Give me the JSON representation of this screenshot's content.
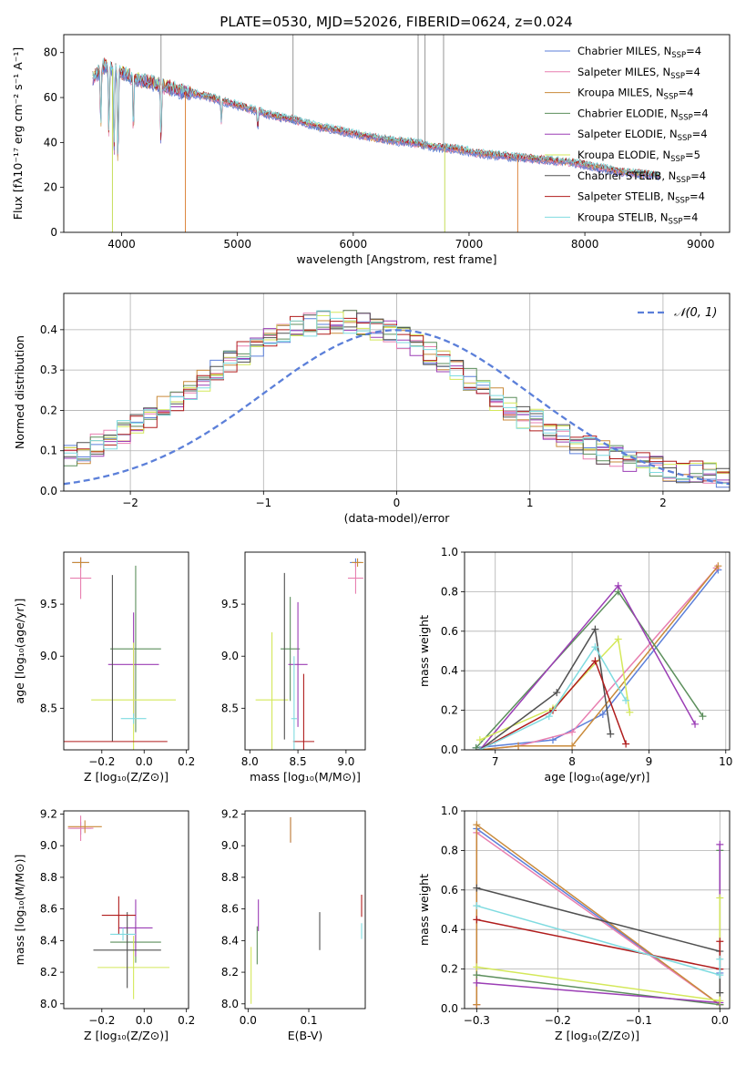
{
  "figure_title": "PLATE=0530, MJD=52026, FIBERID=0624, z=0.024",
  "models": [
    {
      "label": "Chabrier MILES, N",
      "sub": "SSP",
      "tail": "=4",
      "color": "#5b7fd9"
    },
    {
      "label": "Salpeter MILES, N",
      "sub": "SSP",
      "tail": "=4",
      "color": "#e87fb0"
    },
    {
      "label": "Kroupa MILES, N",
      "sub": "SSP",
      "tail": "=4",
      "color": "#c98a3a"
    },
    {
      "label": "Chabrier ELODIE, N",
      "sub": "SSP",
      "tail": "=4",
      "color": "#5c8f5c"
    },
    {
      "label": "Salpeter ELODIE, N",
      "sub": "SSP",
      "tail": "=4",
      "color": "#9b3db5"
    },
    {
      "label": "Kroupa ELODIE, N",
      "sub": "SSP",
      "tail": "=5",
      "color": "#d4e85a"
    },
    {
      "label": "Chabrier STELIB, N",
      "sub": "SSP",
      "tail": "=4",
      "color": "#505050"
    },
    {
      "label": "Salpeter STELIB, N",
      "sub": "SSP",
      "tail": "=4",
      "color": "#b01c1c"
    },
    {
      "label": "Kroupa STELIB, N",
      "sub": "SSP",
      "tail": "=4",
      "color": "#7fdbe0"
    }
  ],
  "chart_data": [
    {
      "id": "spectrum",
      "type": "line",
      "xlabel": "wavelength [Angstrom, rest frame]",
      "ylabel": "Flux [fλ10⁻¹⁷ erg cm⁻² s⁻¹ A⁻¹]",
      "xlim": [
        3500,
        9250
      ],
      "ylim": [
        0,
        88
      ],
      "xticks": [
        4000,
        5000,
        6000,
        7000,
        8000,
        9000
      ],
      "yticks": [
        0,
        20,
        40,
        60,
        80
      ],
      "grid": false,
      "legend": "top-right",
      "continuum": {
        "x": [
          3750,
          3850,
          3950,
          4050,
          4150,
          4300,
          4500,
          4700,
          4900,
          5100,
          5300,
          5500,
          5700,
          5900,
          6100,
          6300,
          6500,
          6700,
          6900,
          7100,
          7300,
          7500,
          7700,
          7900,
          8100,
          8300,
          8500,
          8650
        ],
        "y": [
          68,
          74,
          72,
          70,
          68,
          66,
          63,
          61,
          58,
          55,
          52,
          50,
          47,
          45,
          43,
          41,
          40,
          38,
          37,
          35,
          34,
          33,
          32,
          31,
          29,
          27,
          26,
          25
        ]
      },
      "absorption_lines": [
        {
          "x": 3820,
          "depth": 25
        },
        {
          "x": 3890,
          "depth": 30
        },
        {
          "x": 3934,
          "depth": 40
        },
        {
          "x": 3968,
          "depth": 42
        },
        {
          "x": 4101,
          "depth": 25
        },
        {
          "x": 4340,
          "depth": 25
        },
        {
          "x": 4861,
          "depth": 10
        },
        {
          "x": 5175,
          "depth": 8
        }
      ],
      "artifacts": [
        {
          "x": 3920,
          "y": 0
        },
        {
          "x": 4550,
          "y": 0
        },
        {
          "x": 6790,
          "y": 0
        },
        {
          "x": 7420,
          "y": 0
        },
        {
          "x": 4340,
          "y": 88
        },
        {
          "x": 5480,
          "y": 88
        },
        {
          "x": 6560,
          "y": 88
        },
        {
          "x": 6620,
          "y": 88
        },
        {
          "x": 6780,
          "y": 88
        }
      ]
    },
    {
      "id": "residuals",
      "type": "histogram",
      "xlabel": "(data-model)/error",
      "ylabel": "Normed distribution",
      "xlim": [
        -2.5,
        2.5
      ],
      "ylim": [
        0,
        0.49
      ],
      "xticks": [
        -2,
        -1,
        0,
        1,
        2
      ],
      "yticks": [
        0.0,
        0.1,
        0.2,
        0.3,
        0.4
      ],
      "grid": true,
      "legend": "top-right",
      "gaussian_label": "𝒩(0, 1)",
      "gaussian_color": "#5b7fd9",
      "bin_edges_start": -2.5,
      "bin_width": 0.1
    },
    {
      "id": "age_vs_Z",
      "type": "errorbar",
      "xlabel": "Z [log₁₀(Z/Z⊙)]",
      "ylabel": "age  [log₁₀(age/yr)]",
      "xlim": [
        -0.38,
        0.21
      ],
      "ylim": [
        8.1,
        10.0
      ],
      "xticks": [
        -0.2,
        0.0,
        0.2
      ],
      "yticks": [
        8.5,
        9.0,
        9.5
      ],
      "grid": false
    },
    {
      "id": "age_vs_mass",
      "type": "errorbar",
      "xlabel": "mass [log₁₀(M/M⊙)]",
      "ylabel": "",
      "xlim": [
        7.95,
        9.2
      ],
      "ylim": [
        8.1,
        10.0
      ],
      "xticks": [
        8.0,
        8.5,
        9.0
      ],
      "yticks": [
        8.5,
        9.0,
        9.5
      ],
      "grid": false
    },
    {
      "id": "weight_vs_age",
      "type": "line",
      "xlabel": "age  [log₁₀(age/yr)]",
      "ylabel": "mass weight",
      "xlim": [
        6.6,
        10.05
      ],
      "ylim": [
        0.0,
        1.0
      ],
      "xticks": [
        7,
        8,
        9,
        10
      ],
      "yticks": [
        0.0,
        0.2,
        0.4,
        0.6,
        0.8,
        1.0
      ],
      "grid": true,
      "series": [
        {
          "model": 0,
          "x": [
            6.75,
            7.75,
            8.4,
            9.9
          ],
          "y": [
            0.01,
            0.05,
            0.18,
            0.91
          ]
        },
        {
          "model": 1,
          "x": [
            6.8,
            7.3,
            8.0,
            9.88
          ],
          "y": [
            0.0,
            0.02,
            0.09,
            0.92
          ]
        },
        {
          "model": 2,
          "x": [
            6.8,
            7.3,
            8.0,
            9.9
          ],
          "y": [
            0.0,
            0.02,
            0.02,
            0.93
          ]
        },
        {
          "model": 3,
          "x": [
            6.75,
            8.6,
            9.7
          ],
          "y": [
            0.01,
            0.8,
            0.17
          ]
        },
        {
          "model": 4,
          "x": [
            6.8,
            8.6,
            9.6
          ],
          "y": [
            0.0,
            0.83,
            0.13
          ]
        },
        {
          "model": 5,
          "x": [
            6.8,
            7.75,
            8.6,
            8.75
          ],
          "y": [
            0.05,
            0.21,
            0.56,
            0.19
          ]
        },
        {
          "model": 6,
          "x": [
            6.8,
            7.8,
            8.3,
            8.5
          ],
          "y": [
            0.0,
            0.29,
            0.61,
            0.08
          ]
        },
        {
          "model": 7,
          "x": [
            6.8,
            7.75,
            8.3,
            8.7
          ],
          "y": [
            0.0,
            0.2,
            0.45,
            0.03
          ]
        },
        {
          "model": 8,
          "x": [
            6.8,
            7.7,
            8.3,
            8.7
          ],
          "y": [
            0.0,
            0.17,
            0.52,
            0.25
          ]
        }
      ]
    },
    {
      "id": "mass_vs_Z",
      "type": "errorbar",
      "xlabel": "Z [log₁₀(Z/Z⊙)]",
      "ylabel": "mass [log₁₀(M/M⊙)]",
      "xlim": [
        -0.38,
        0.21
      ],
      "ylim": [
        7.97,
        9.22
      ],
      "xticks": [
        -0.2,
        0.0,
        0.2
      ],
      "yticks": [
        8.0,
        8.2,
        8.4,
        8.6,
        8.8,
        9.0,
        9.2
      ],
      "grid": false
    },
    {
      "id": "mass_vs_ebv",
      "type": "errorbar",
      "xlabel": "E(B-V)",
      "ylabel": "",
      "xlim": [
        -0.005,
        0.193
      ],
      "ylim": [
        7.97,
        9.22
      ],
      "xticks": [
        0.0,
        0.1
      ],
      "yticks": [
        8.0,
        8.2,
        8.4,
        8.6,
        8.8,
        9.0,
        9.2
      ],
      "grid": false,
      "points": [
        {
          "model": 0,
          "x": 0.07,
          "y": 9.1,
          "err": 0.08
        },
        {
          "model": 1,
          "x": 0.07,
          "y": 9.1,
          "err": 0.08
        },
        {
          "model": 2,
          "x": 0.07,
          "y": 9.1,
          "err": 0.08
        },
        {
          "model": 3,
          "x": 0.015,
          "y": 8.37,
          "err": 0.12
        },
        {
          "model": 4,
          "x": 0.017,
          "y": 8.56,
          "err": 0.1
        },
        {
          "model": 5,
          "x": 0.005,
          "y": 8.18,
          "err": 0.18
        },
        {
          "model": 6,
          "x": 0.118,
          "y": 8.46,
          "err": 0.12
        },
        {
          "model": 7,
          "x": 0.187,
          "y": 8.62,
          "err": 0.07
        },
        {
          "model": 8,
          "x": 0.187,
          "y": 8.46,
          "err": 0.05
        }
      ]
    },
    {
      "id": "weight_vs_Z",
      "type": "line",
      "xlabel": "Z [log₁₀(Z/Z⊙)]",
      "ylabel": "mass weight",
      "xlim": [
        -0.315,
        0.012
      ],
      "ylim": [
        0.0,
        1.0
      ],
      "xticks": [
        -0.3,
        -0.2,
        -0.1,
        0.0
      ],
      "yticks": [
        0.0,
        0.2,
        0.4,
        0.6,
        0.8,
        1.0
      ],
      "grid": true,
      "series": [
        {
          "model": 0,
          "x": [
            -0.3,
            -0.3,
            0.0,
            0.0
          ],
          "y": [
            0.02,
            0.91,
            0.02,
            0.18
          ]
        },
        {
          "model": 1,
          "x": [
            -0.3,
            -0.3,
            0.0,
            0.0
          ],
          "y": [
            0.02,
            0.89,
            0.02,
            0.2
          ]
        },
        {
          "model": 2,
          "x": [
            -0.3,
            -0.3,
            0.0,
            0.0
          ],
          "y": [
            0.02,
            0.93,
            0.02,
            0.02
          ]
        },
        {
          "model": 3,
          "x": [
            -0.3,
            0.0,
            0.0
          ],
          "y": [
            0.17,
            0.02,
            0.8
          ]
        },
        {
          "model": 4,
          "x": [
            -0.3,
            0.0,
            0.0
          ],
          "y": [
            0.13,
            0.03,
            0.83
          ]
        },
        {
          "model": 5,
          "x": [
            -0.3,
            0.0,
            0.0
          ],
          "y": [
            0.21,
            0.04,
            0.56
          ]
        },
        {
          "model": 6,
          "x": [
            -0.3,
            0.0,
            0.0
          ],
          "y": [
            0.61,
            0.29,
            0.08
          ]
        },
        {
          "model": 7,
          "x": [
            -0.3,
            0.0,
            0.0
          ],
          "y": [
            0.45,
            0.2,
            0.34
          ]
        },
        {
          "model": 8,
          "x": [
            -0.3,
            0.0,
            0.0
          ],
          "y": [
            0.52,
            0.17,
            0.25
          ]
        }
      ]
    }
  ]
}
